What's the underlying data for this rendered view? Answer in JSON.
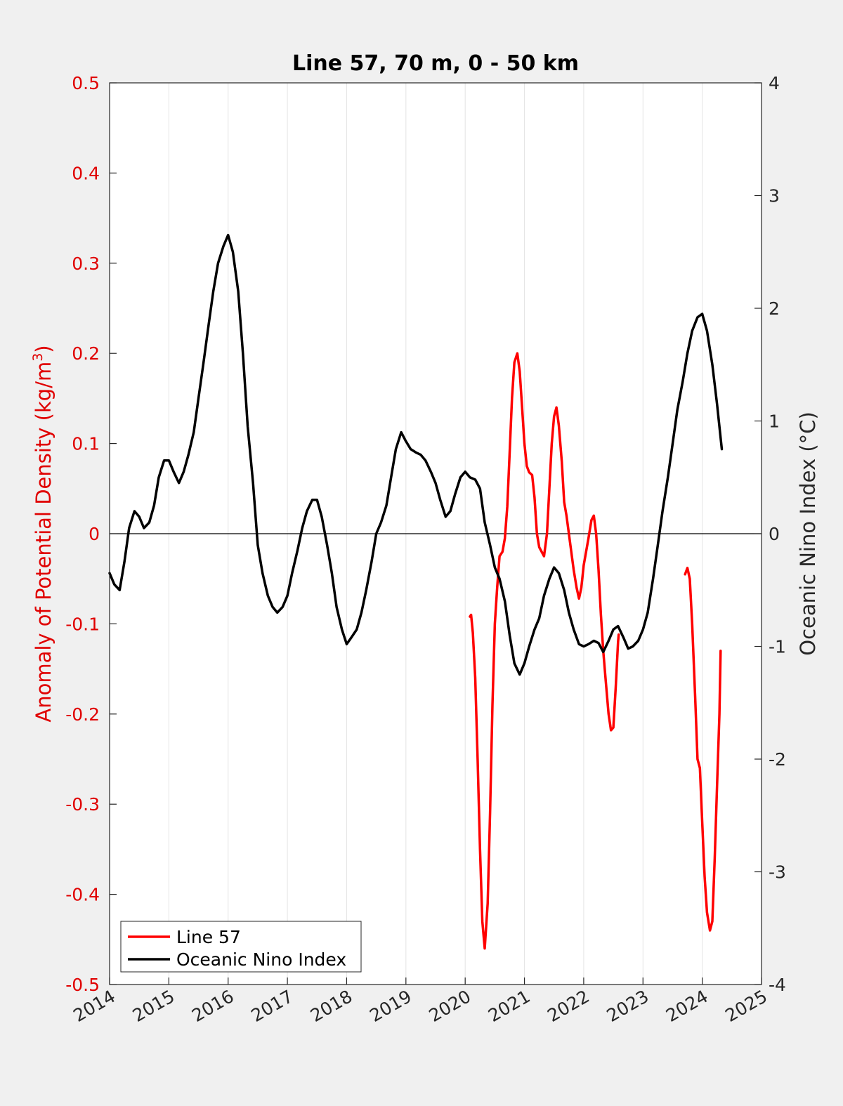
{
  "chart_data": {
    "type": "line",
    "title": "Line 57, 70 m, 0 - 50 km",
    "xlim": [
      2014,
      2025
    ],
    "x_ticks": [
      2014,
      2015,
      2016,
      2017,
      2018,
      2019,
      2020,
      2021,
      2022,
      2023,
      2024,
      2025
    ],
    "x_tick_labels": [
      "2014",
      "2015",
      "2016",
      "2017",
      "2018",
      "2019",
      "2020",
      "2021",
      "2022",
      "2023",
      "2024",
      "2025"
    ],
    "grid": "vertical",
    "legend_position": "bottom-left",
    "y_left": {
      "label_prefix": "Anomaly of Potential Density (kg/m",
      "label_superscript": "3",
      "label_suffix": ")",
      "ylim": [
        -0.5,
        0.5
      ],
      "ticks": [
        0.5,
        0.4,
        0.3,
        0.2,
        0.1,
        0,
        -0.1,
        -0.2,
        -0.3,
        -0.4,
        -0.5
      ],
      "tick_labels": [
        "0.5",
        "0.4",
        "0.3",
        "0.2",
        "0.1",
        "0",
        "-0.1",
        "-0.2",
        "-0.3",
        "-0.4",
        "-0.5"
      ],
      "color": "#e00000"
    },
    "y_right": {
      "label": "Oceanic Nino Index (°C)",
      "ylim": [
        -4,
        4
      ],
      "ticks": [
        4,
        3,
        2,
        1,
        0,
        -1,
        -2,
        -3,
        -4
      ],
      "tick_labels": [
        "4",
        "3",
        "2",
        "1",
        "0",
        "-1",
        "-2",
        "-3",
        "-4"
      ],
      "color": "#262626"
    },
    "series": [
      {
        "name": "Line 57",
        "axis": "left",
        "color": "#ff0000",
        "segments": [
          [
            [
              2020.08,
              -0.092
            ],
            [
              2020.1,
              -0.09
            ],
            [
              2020.13,
              -0.11
            ],
            [
              2020.17,
              -0.16
            ],
            [
              2020.21,
              -0.25
            ],
            [
              2020.25,
              -0.35
            ],
            [
              2020.29,
              -0.43
            ],
            [
              2020.33,
              -0.46
            ],
            [
              2020.38,
              -0.41
            ],
            [
              2020.42,
              -0.31
            ],
            [
              2020.46,
              -0.19
            ],
            [
              2020.5,
              -0.1
            ],
            [
              2020.54,
              -0.06
            ],
            [
              2020.58,
              -0.025
            ],
            [
              2020.63,
              -0.02
            ],
            [
              2020.67,
              -0.005
            ],
            [
              2020.71,
              0.03
            ],
            [
              2020.75,
              0.09
            ],
            [
              2020.79,
              0.15
            ],
            [
              2020.83,
              0.19
            ],
            [
              2020.88,
              0.2
            ],
            [
              2020.92,
              0.18
            ],
            [
              2020.96,
              0.14
            ],
            [
              2021.0,
              0.1
            ],
            [
              2021.04,
              0.075
            ],
            [
              2021.08,
              0.068
            ],
            [
              2021.13,
              0.065
            ],
            [
              2021.17,
              0.04
            ],
            [
              2021.21,
              0.0
            ],
            [
              2021.25,
              -0.015
            ],
            [
              2021.29,
              -0.02
            ],
            [
              2021.33,
              -0.025
            ],
            [
              2021.38,
              0.0
            ],
            [
              2021.42,
              0.05
            ],
            [
              2021.46,
              0.1
            ],
            [
              2021.5,
              0.13
            ],
            [
              2021.54,
              0.14
            ],
            [
              2021.58,
              0.12
            ],
            [
              2021.63,
              0.08
            ],
            [
              2021.67,
              0.035
            ],
            [
              2021.71,
              0.02
            ],
            [
              2021.75,
              0.0
            ],
            [
              2021.79,
              -0.02
            ],
            [
              2021.83,
              -0.04
            ],
            [
              2021.88,
              -0.06
            ],
            [
              2021.92,
              -0.072
            ],
            [
              2021.96,
              -0.06
            ],
            [
              2022.0,
              -0.035
            ],
            [
              2022.04,
              -0.02
            ],
            [
              2022.08,
              -0.005
            ],
            [
              2022.13,
              0.015
            ],
            [
              2022.17,
              0.02
            ],
            [
              2022.21,
              0.0
            ],
            [
              2022.25,
              -0.04
            ],
            [
              2022.29,
              -0.09
            ],
            [
              2022.33,
              -0.13
            ],
            [
              2022.38,
              -0.17
            ],
            [
              2022.42,
              -0.2
            ],
            [
              2022.46,
              -0.218
            ],
            [
              2022.5,
              -0.215
            ],
            [
              2022.54,
              -0.17
            ],
            [
              2022.58,
              -0.12
            ],
            [
              2022.59,
              -0.112
            ]
          ],
          [
            [
              2023.71,
              -0.045
            ],
            [
              2023.75,
              -0.038
            ],
            [
              2023.79,
              -0.05
            ],
            [
              2023.83,
              -0.1
            ],
            [
              2023.88,
              -0.18
            ],
            [
              2023.92,
              -0.25
            ],
            [
              2023.96,
              -0.26
            ],
            [
              2024.0,
              -0.32
            ],
            [
              2024.04,
              -0.38
            ],
            [
              2024.08,
              -0.42
            ],
            [
              2024.13,
              -0.44
            ],
            [
              2024.17,
              -0.43
            ],
            [
              2024.21,
              -0.36
            ],
            [
              2024.25,
              -0.28
            ],
            [
              2024.29,
              -0.2
            ],
            [
              2024.31,
              -0.13
            ]
          ]
        ]
      },
      {
        "name": "Oceanic Nino Index",
        "axis": "right",
        "color": "#000000",
        "segments": [
          [
            [
              2014.0,
              -0.35
            ],
            [
              2014.08,
              -0.45
            ],
            [
              2014.17,
              -0.5
            ],
            [
              2014.25,
              -0.25
            ],
            [
              2014.33,
              0.05
            ],
            [
              2014.42,
              0.2
            ],
            [
              2014.5,
              0.15
            ],
            [
              2014.58,
              0.05
            ],
            [
              2014.67,
              0.1
            ],
            [
              2014.75,
              0.25
            ],
            [
              2014.83,
              0.5
            ],
            [
              2014.92,
              0.65
            ],
            [
              2015.0,
              0.65
            ],
            [
              2015.08,
              0.55
            ],
            [
              2015.17,
              0.45
            ],
            [
              2015.25,
              0.55
            ],
            [
              2015.33,
              0.7
            ],
            [
              2015.42,
              0.9
            ],
            [
              2015.5,
              1.2
            ],
            [
              2015.58,
              1.5
            ],
            [
              2015.67,
              1.85
            ],
            [
              2015.75,
              2.15
            ],
            [
              2015.83,
              2.4
            ],
            [
              2015.92,
              2.55
            ],
            [
              2016.0,
              2.65
            ],
            [
              2016.08,
              2.5
            ],
            [
              2016.17,
              2.15
            ],
            [
              2016.25,
              1.6
            ],
            [
              2016.33,
              0.95
            ],
            [
              2016.42,
              0.45
            ],
            [
              2016.5,
              -0.1
            ],
            [
              2016.58,
              -0.35
            ],
            [
              2016.67,
              -0.55
            ],
            [
              2016.75,
              -0.65
            ],
            [
              2016.83,
              -0.7
            ],
            [
              2016.92,
              -0.65
            ],
            [
              2017.0,
              -0.55
            ],
            [
              2017.08,
              -0.35
            ],
            [
              2017.17,
              -0.15
            ],
            [
              2017.25,
              0.05
            ],
            [
              2017.33,
              0.2
            ],
            [
              2017.42,
              0.3
            ],
            [
              2017.5,
              0.3
            ],
            [
              2017.58,
              0.15
            ],
            [
              2017.67,
              -0.1
            ],
            [
              2017.75,
              -0.35
            ],
            [
              2017.83,
              -0.65
            ],
            [
              2017.92,
              -0.85
            ],
            [
              2018.0,
              -0.98
            ],
            [
              2018.08,
              -0.92
            ],
            [
              2018.17,
              -0.85
            ],
            [
              2018.25,
              -0.7
            ],
            [
              2018.33,
              -0.5
            ],
            [
              2018.42,
              -0.25
            ],
            [
              2018.5,
              0.0
            ],
            [
              2018.58,
              0.1
            ],
            [
              2018.67,
              0.25
            ],
            [
              2018.75,
              0.5
            ],
            [
              2018.83,
              0.75
            ],
            [
              2018.92,
              0.9
            ],
            [
              2019.0,
              0.82
            ],
            [
              2019.08,
              0.75
            ],
            [
              2019.17,
              0.72
            ],
            [
              2019.25,
              0.7
            ],
            [
              2019.33,
              0.65
            ],
            [
              2019.42,
              0.55
            ],
            [
              2019.5,
              0.45
            ],
            [
              2019.58,
              0.3
            ],
            [
              2019.67,
              0.15
            ],
            [
              2019.75,
              0.2
            ],
            [
              2019.83,
              0.35
            ],
            [
              2019.92,
              0.5
            ],
            [
              2020.0,
              0.55
            ],
            [
              2020.08,
              0.5
            ],
            [
              2020.17,
              0.48
            ],
            [
              2020.25,
              0.4
            ],
            [
              2020.33,
              0.1
            ],
            [
              2020.42,
              -0.1
            ],
            [
              2020.5,
              -0.3
            ],
            [
              2020.58,
              -0.4
            ],
            [
              2020.67,
              -0.6
            ],
            [
              2020.75,
              -0.9
            ],
            [
              2020.83,
              -1.15
            ],
            [
              2020.92,
              -1.25
            ],
            [
              2021.0,
              -1.15
            ],
            [
              2021.08,
              -1.0
            ],
            [
              2021.17,
              -0.85
            ],
            [
              2021.25,
              -0.75
            ],
            [
              2021.33,
              -0.55
            ],
            [
              2021.42,
              -0.4
            ],
            [
              2021.5,
              -0.3
            ],
            [
              2021.58,
              -0.35
            ],
            [
              2021.67,
              -0.5
            ],
            [
              2021.75,
              -0.7
            ],
            [
              2021.83,
              -0.85
            ],
            [
              2021.92,
              -0.98
            ],
            [
              2022.0,
              -1.0
            ],
            [
              2022.08,
              -0.98
            ],
            [
              2022.17,
              -0.95
            ],
            [
              2022.25,
              -0.97
            ],
            [
              2022.33,
              -1.05
            ],
            [
              2022.42,
              -0.95
            ],
            [
              2022.5,
              -0.85
            ],
            [
              2022.58,
              -0.82
            ],
            [
              2022.67,
              -0.92
            ],
            [
              2022.75,
              -1.02
            ],
            [
              2022.83,
              -1.0
            ],
            [
              2022.92,
              -0.95
            ],
            [
              2023.0,
              -0.85
            ],
            [
              2023.08,
              -0.7
            ],
            [
              2023.17,
              -0.4
            ],
            [
              2023.25,
              -0.1
            ],
            [
              2023.33,
              0.2
            ],
            [
              2023.42,
              0.5
            ],
            [
              2023.5,
              0.8
            ],
            [
              2023.58,
              1.1
            ],
            [
              2023.67,
              1.35
            ],
            [
              2023.75,
              1.6
            ],
            [
              2023.83,
              1.8
            ],
            [
              2023.92,
              1.92
            ],
            [
              2024.0,
              1.95
            ],
            [
              2024.08,
              1.8
            ],
            [
              2024.17,
              1.5
            ],
            [
              2024.25,
              1.15
            ],
            [
              2024.33,
              0.75
            ]
          ]
        ]
      }
    ]
  }
}
